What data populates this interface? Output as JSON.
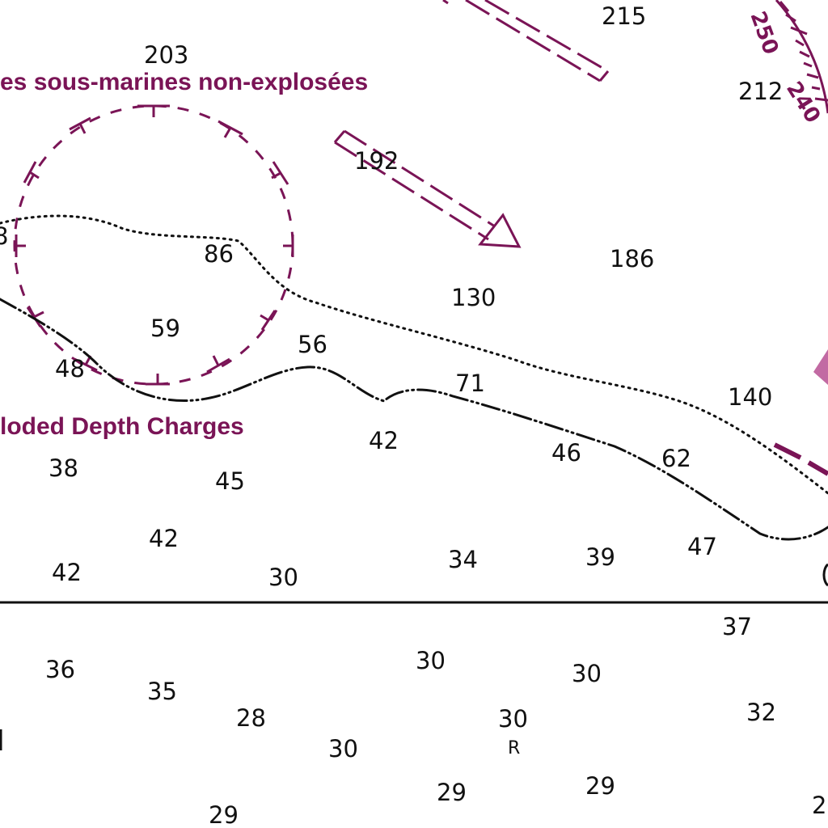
{
  "colors": {
    "magenta": "#7a1456",
    "pink_shape": "#c26aa3",
    "ink": "#111111",
    "background": "#ffffff"
  },
  "labels": {
    "french_caption": "es sous-marines non-explosées",
    "english_caption": "loded Depth Charges"
  },
  "compass": {
    "numbers": [
      "250",
      "240"
    ]
  },
  "soundings": [
    {
      "id": "s215",
      "text": "215"
    },
    {
      "id": "s203",
      "text": "203"
    },
    {
      "id": "s212",
      "text": "212"
    },
    {
      "id": "s192",
      "text": "192"
    },
    {
      "id": "s186",
      "text": "186"
    },
    {
      "id": "s86",
      "text": "86"
    },
    {
      "id": "s130",
      "text": "130"
    },
    {
      "id": "s59",
      "text": "59"
    },
    {
      "id": "s56",
      "text": "56"
    },
    {
      "id": "s48",
      "text": "48"
    },
    {
      "id": "s71",
      "text": "71"
    },
    {
      "id": "s140",
      "text": "140"
    },
    {
      "id": "s42a",
      "text": "42"
    },
    {
      "id": "s46",
      "text": "46"
    },
    {
      "id": "s62",
      "text": "62"
    },
    {
      "id": "s38",
      "text": "38"
    },
    {
      "id": "s45",
      "text": "45"
    },
    {
      "id": "s42b",
      "text": "42"
    },
    {
      "id": "s47",
      "text": "47"
    },
    {
      "id": "s42c",
      "text": "42"
    },
    {
      "id": "s30a",
      "text": "30"
    },
    {
      "id": "s34",
      "text": "34"
    },
    {
      "id": "s39",
      "text": "39"
    },
    {
      "id": "s37",
      "text": "37"
    },
    {
      "id": "s36",
      "text": "36"
    },
    {
      "id": "s30b",
      "text": "30"
    },
    {
      "id": "s30c",
      "text": "30"
    },
    {
      "id": "s35",
      "text": "35"
    },
    {
      "id": "s28",
      "text": "28"
    },
    {
      "id": "s30d",
      "text": "30"
    },
    {
      "id": "s32",
      "text": "32"
    },
    {
      "id": "s30e",
      "text": "30"
    },
    {
      "id": "s29a",
      "text": "29"
    },
    {
      "id": "s29b",
      "text": "29"
    },
    {
      "id": "s29c",
      "text": "29"
    }
  ],
  "seabed_note": "R",
  "edge_fragments": {
    "left_8": "8",
    "right_2": "2"
  }
}
